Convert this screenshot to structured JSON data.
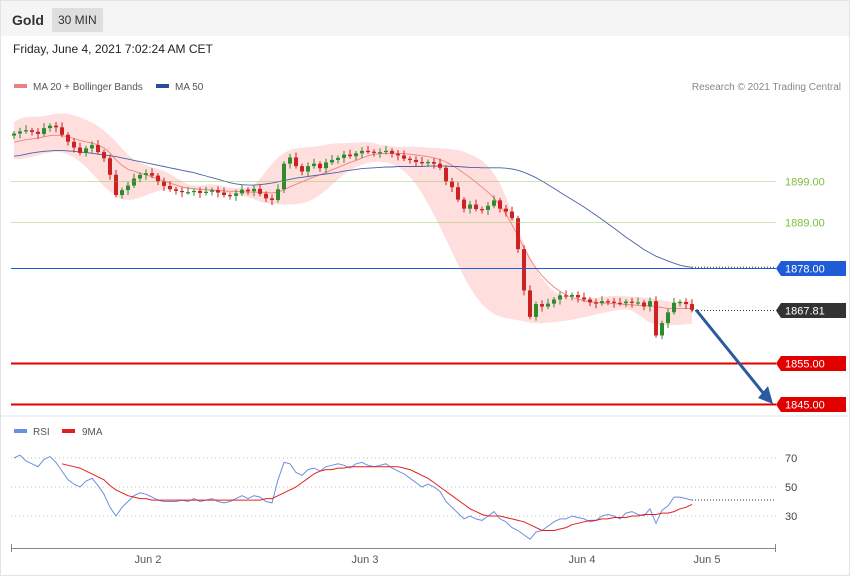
{
  "header": {
    "symbol": "Gold",
    "timeframe": "30 MIN",
    "timestamp": "Friday, June 4, 2021 7:02:24 AM CET"
  },
  "legend": {
    "ma20_label": "MA 20 + Bollinger Bands",
    "ma50_label": "MA 50",
    "copyright": "Research © 2021 Trading Central",
    "rsi_label": "RSI",
    "rsi_ma_label": "9MA"
  },
  "colors": {
    "up_candle": "#2e8b2e",
    "down_candle": "#cc2222",
    "ma20": "#f08080",
    "bollinger_fill": "#ffdede",
    "ma50": "#4a62a8",
    "resistance": "#7cbf3a",
    "pivot": "#1f5bd6",
    "support": "#e00000",
    "current": "#333333",
    "arrow": "#2c5aa0",
    "rsi": "#6d8fe0",
    "rsi_ma": "#e02020"
  },
  "chart_data": [
    {
      "type": "candlestick",
      "title": "Gold 30 MIN",
      "x_labels": [
        "Jun 2",
        "Jun 3",
        "Jun 4",
        "Jun 5"
      ],
      "ylim": [
        1841,
        1903
      ],
      "levels": [
        {
          "value": 1899.0,
          "label": "1899.00",
          "kind": "resistance"
        },
        {
          "value": 1889.0,
          "label": "1889.00",
          "kind": "resistance"
        },
        {
          "value": 1878.0,
          "label": "1878.00",
          "kind": "pivot"
        },
        {
          "value": 1867.81,
          "label": "1867.81",
          "kind": "current"
        },
        {
          "value": 1855.0,
          "label": "1855.00",
          "kind": "support"
        },
        {
          "value": 1845.0,
          "label": "1845.00",
          "kind": "support"
        }
      ],
      "closes": [
        1910.5,
        1911.0,
        1911.3,
        1910.9,
        1910.4,
        1911.8,
        1912.4,
        1912.0,
        1910.2,
        1908.5,
        1907.1,
        1905.8,
        1906.9,
        1907.7,
        1906.0,
        1904.5,
        1900.5,
        1895.6,
        1896.8,
        1897.9,
        1899.6,
        1900.5,
        1900.9,
        1900.3,
        1898.9,
        1897.8,
        1897.0,
        1896.6,
        1896.3,
        1896.3,
        1896.6,
        1896.1,
        1896.4,
        1896.8,
        1896.2,
        1895.6,
        1895.4,
        1896.0,
        1896.9,
        1896.5,
        1897.1,
        1895.9,
        1894.8,
        1894.4,
        1897.0,
        1903.2,
        1904.7,
        1902.6,
        1901.3,
        1902.6,
        1903.2,
        1902.1,
        1903.5,
        1904.1,
        1904.6,
        1905.4,
        1905.0,
        1905.7,
        1906.3,
        1906.1,
        1905.8,
        1906.0,
        1906.3,
        1905.6,
        1905.2,
        1904.4,
        1904.1,
        1903.6,
        1903.3,
        1903.6,
        1903.2,
        1902.2,
        1898.9,
        1897.5,
        1894.5,
        1892.3,
        1893.3,
        1892.2,
        1892.0,
        1893.0,
        1894.3,
        1892.3,
        1891.6,
        1890.0,
        1882.5,
        1872.5,
        1866.1,
        1869.2,
        1868.6,
        1869.3,
        1870.3,
        1871.3,
        1871.0,
        1871.4,
        1870.8,
        1870.3,
        1869.6,
        1869.4,
        1869.9,
        1869.8,
        1869.5,
        1869.4,
        1869.8,
        1869.5,
        1869.6,
        1868.6,
        1869.9,
        1861.6,
        1864.6,
        1867.2,
        1869.5,
        1869.7,
        1869.2,
        1867.8
      ],
      "ma20": [
        1908.4,
        1908.7,
        1909.0,
        1909.2,
        1909.4,
        1909.7,
        1910.0,
        1910.1,
        1910.0,
        1909.7,
        1909.3,
        1908.8,
        1908.5,
        1908.2,
        1907.7,
        1907.0,
        1905.8,
        1904.1,
        1902.8,
        1901.8,
        1901.4,
        1900.9,
        1900.5,
        1900.0,
        1899.5,
        1899.0,
        1898.5,
        1898.0,
        1897.6,
        1897.3,
        1897.1,
        1897.0,
        1896.9,
        1896.8,
        1896.7,
        1896.6,
        1896.5,
        1896.5,
        1896.4,
        1896.3,
        1896.3,
        1896.3,
        1896.2,
        1896.1,
        1896.3,
        1896.9,
        1897.6,
        1898.2,
        1898.8,
        1899.4,
        1900.0,
        1900.5,
        1901.1,
        1901.7,
        1902.3,
        1902.9,
        1903.5,
        1904.0,
        1904.6,
        1905.1,
        1905.5,
        1905.6,
        1905.7,
        1905.7,
        1905.7,
        1905.6,
        1905.5,
        1905.3,
        1905.1,
        1904.9,
        1904.6,
        1904.2,
        1903.6,
        1902.8,
        1901.9,
        1900.9,
        1899.8,
        1898.7,
        1897.5,
        1896.3,
        1894.9,
        1893.1,
        1890.9,
        1888.4,
        1885.7,
        1882.8,
        1880.1,
        1877.9,
        1876.1,
        1874.6,
        1873.3,
        1872.3,
        1871.4,
        1870.8,
        1870.4,
        1870.0,
        1869.8,
        1869.6,
        1869.5,
        1869.4,
        1869.3,
        1869.2,
        1869.1,
        1869.0,
        1868.9,
        1868.8,
        1868.7,
        1868.6,
        1868.4,
        1868.1,
        1868.1,
        1868.1,
        1868.1,
        1868.1
      ],
      "bb_upper": [
        1913.3,
        1914.1,
        1914.5,
        1914.6,
        1914.6,
        1914.7,
        1915.0,
        1915.3,
        1915.4,
        1915.3,
        1914.9,
        1914.4,
        1913.8,
        1913.2,
        1912.3,
        1911.2,
        1909.9,
        1908.5,
        1906.9,
        1905.3,
        1904.2,
        1903.4,
        1902.8,
        1902.3,
        1901.9,
        1901.4,
        1900.7,
        1899.8,
        1898.9,
        1898.2,
        1897.9,
        1897.9,
        1898.1,
        1898.2,
        1898.0,
        1897.7,
        1897.4,
        1897.3,
        1897.3,
        1897.5,
        1898.1,
        1899.5,
        1901.4,
        1903.2,
        1904.7,
        1905.8,
        1906.5,
        1906.9,
        1907.1,
        1907.2,
        1907.3,
        1907.5,
        1907.8,
        1908.0,
        1908.1,
        1908.1,
        1908.2,
        1908.3,
        1908.4,
        1908.4,
        1908.2,
        1907.8,
        1907.5,
        1907.4,
        1907.3,
        1907.3,
        1907.3,
        1907.3,
        1907.2,
        1907.1,
        1907.0,
        1906.9,
        1906.8,
        1906.7,
        1906.5,
        1906.1,
        1905.5,
        1904.8,
        1903.9,
        1902.6,
        1900.8,
        1898.3,
        1895.1,
        1891.4,
        1887.5,
        1883.9,
        1880.6,
        1877.8,
        1875.4,
        1873.6,
        1872.3,
        1871.4,
        1870.9,
        1870.6,
        1870.5,
        1870.5,
        1870.6,
        1870.7,
        1870.9,
        1871.1,
        1871.2,
        1871.2,
        1871.1,
        1871.0,
        1870.9,
        1870.8,
        1870.6,
        1870.4,
        1870.1,
        1869.8,
        1869.8,
        1869.9,
        1870.0,
        1870.0
      ],
      "bb_lower": [
        1904.3,
        1904.3,
        1904.5,
        1904.8,
        1905.2,
        1905.6,
        1905.9,
        1906.1,
        1905.9,
        1905.4,
        1904.7,
        1903.7,
        1902.4,
        1900.9,
        1899.3,
        1897.7,
        1896.4,
        1895.3,
        1894.6,
        1894.4,
        1894.6,
        1895.0,
        1895.5,
        1896.1,
        1896.5,
        1896.9,
        1897.1,
        1897.1,
        1897.1,
        1897.0,
        1896.9,
        1896.7,
        1896.6,
        1896.4,
        1896.3,
        1896.1,
        1895.9,
        1895.7,
        1895.4,
        1895.1,
        1894.6,
        1894.0,
        1893.6,
        1893.4,
        1893.3,
        1893.3,
        1893.3,
        1893.4,
        1893.6,
        1894.0,
        1894.7,
        1895.7,
        1896.8,
        1898.1,
        1899.4,
        1900.6,
        1901.6,
        1902.4,
        1903.0,
        1903.4,
        1903.6,
        1903.7,
        1903.5,
        1903.1,
        1902.4,
        1901.4,
        1900.0,
        1898.2,
        1896.0,
        1893.5,
        1890.8,
        1887.9,
        1884.9,
        1881.8,
        1878.7,
        1875.8,
        1873.2,
        1871.0,
        1869.2,
        1867.8,
        1866.8,
        1866.2,
        1865.8,
        1865.5,
        1865.3,
        1865.0,
        1864.7,
        1864.6,
        1864.6,
        1864.7,
        1864.8,
        1865.0,
        1865.2,
        1865.4,
        1865.7,
        1866.0,
        1866.3,
        1866.7,
        1867.0,
        1867.3,
        1867.6,
        1867.8,
        1867.9,
        1867.6,
        1866.7,
        1865.6,
        1864.7,
        1864.2,
        1864.0,
        1864.1,
        1864.1,
        1864.2,
        1864.3,
        1864.4
      ],
      "ma50": [
        1905.0,
        1905.2,
        1905.5,
        1905.8,
        1906.0,
        1906.2,
        1906.3,
        1906.4,
        1906.4,
        1906.3,
        1906.2,
        1906.0,
        1905.9,
        1905.7,
        1905.5,
        1905.3,
        1905.1,
        1904.9,
        1904.6,
        1904.3,
        1904.0,
        1903.7,
        1903.4,
        1903.1,
        1902.8,
        1902.5,
        1902.2,
        1901.9,
        1901.6,
        1901.3,
        1901.0,
        1900.6,
        1900.2,
        1899.8,
        1899.4,
        1899.0,
        1898.6,
        1898.3,
        1898.1,
        1898.0,
        1898.0,
        1898.1,
        1898.3,
        1898.5,
        1898.8,
        1899.1,
        1899.4,
        1899.7,
        1899.9,
        1900.1,
        1900.3,
        1900.5,
        1900.7,
        1900.9,
        1901.1,
        1901.4,
        1901.6,
        1901.8,
        1902.0,
        1902.1,
        1902.2,
        1902.3,
        1902.4,
        1902.4,
        1902.5,
        1902.5,
        1902.5,
        1902.5,
        1902.5,
        1902.6,
        1902.6,
        1902.6,
        1902.6,
        1902.5,
        1902.5,
        1902.4,
        1902.3,
        1902.3,
        1902.2,
        1902.2,
        1902.2,
        1902.2,
        1902.1,
        1901.9,
        1901.6,
        1901.1,
        1900.5,
        1899.8,
        1899.0,
        1898.1,
        1897.2,
        1896.3,
        1895.4,
        1894.5,
        1893.6,
        1892.7,
        1891.7,
        1890.7,
        1889.7,
        1888.6,
        1887.6,
        1886.5,
        1885.4,
        1884.4,
        1883.4,
        1882.4,
        1881.6,
        1880.8,
        1880.2,
        1879.6,
        1879.1,
        1878.6,
        1878.3,
        1878.1
      ],
      "projection": {
        "from": 1867.81,
        "to": 1845.0
      }
    },
    {
      "type": "line",
      "title": "RSI",
      "ylim": [
        10,
        80
      ],
      "yticks": [
        70,
        50,
        30
      ],
      "series": [
        {
          "name": "RSI",
          "values": [
            70.0,
            72.0,
            68.0,
            66.0,
            64.0,
            69.0,
            71.0,
            67.0,
            61.0,
            55.0,
            52.0,
            50.0,
            54.0,
            56.0,
            51.0,
            45.0,
            36.0,
            30.0,
            36.0,
            40.0,
            44.0,
            46.0,
            45.0,
            43.0,
            41.0,
            40.0,
            40.0,
            40.0,
            41.0,
            40.0,
            42.0,
            40.0,
            41.0,
            42.0,
            40.0,
            39.0,
            40.0,
            42.0,
            44.0,
            42.0,
            44.0,
            43.0,
            40.0,
            39.0,
            55.0,
            67.0,
            66.0,
            60.0,
            58.0,
            62.0,
            63.0,
            61.0,
            64.0,
            65.0,
            66.0,
            65.0,
            63.0,
            66.0,
            67.0,
            65.0,
            64.0,
            65.0,
            66.0,
            63.0,
            61.0,
            59.0,
            56.0,
            53.0,
            50.0,
            52.0,
            50.0,
            47.0,
            40.0,
            36.0,
            32.0,
            28.0,
            30.0,
            28.0,
            27.0,
            30.0,
            33.0,
            28.0,
            26.0,
            22.0,
            20.0,
            17.0,
            14.0,
            19.0,
            20.0,
            23.0,
            26.0,
            28.0,
            28.0,
            30.0,
            29.0,
            28.0,
            26.0,
            27.0,
            30.0,
            31.0,
            30.0,
            28.0,
            32.0,
            33.0,
            31.0,
            30.0,
            35.0,
            25.0,
            34.0,
            37.0,
            43.0,
            43.0,
            42.0,
            41.0
          ]
        },
        {
          "name": "9MA",
          "values": [
            null,
            null,
            null,
            null,
            null,
            null,
            null,
            null,
            66.0,
            65.0,
            64.0,
            63.0,
            61.0,
            59.0,
            57.0,
            55.0,
            51.0,
            48.0,
            46.0,
            44.0,
            43.0,
            42.0,
            42.0,
            41.0,
            41.0,
            41.0,
            41.0,
            41.0,
            41.0,
            41.0,
            41.0,
            41.0,
            41.0,
            41.0,
            41.0,
            41.0,
            41.0,
            41.0,
            41.0,
            41.0,
            41.0,
            41.0,
            42.0,
            42.0,
            44.0,
            46.0,
            48.0,
            50.0,
            53.0,
            56.0,
            59.0,
            61.0,
            62.0,
            62.0,
            63.0,
            63.0,
            64.0,
            64.0,
            64.0,
            64.0,
            64.0,
            64.0,
            64.0,
            64.0,
            64.0,
            63.0,
            62.0,
            60.0,
            58.0,
            56.0,
            53.0,
            50.0,
            47.0,
            44.0,
            41.0,
            38.0,
            35.0,
            33.0,
            31.0,
            30.0,
            30.0,
            30.0,
            29.0,
            28.0,
            27.0,
            26.0,
            24.0,
            22.0,
            20.0,
            20.0,
            20.0,
            21.0,
            22.0,
            24.0,
            25.0,
            26.0,
            27.0,
            27.0,
            28.0,
            28.0,
            29.0,
            29.0,
            29.0,
            30.0,
            30.0,
            31.0,
            31.0,
            31.0,
            32.0,
            32.0,
            33.0,
            35.0,
            36.0,
            38.0
          ]
        }
      ]
    }
  ]
}
